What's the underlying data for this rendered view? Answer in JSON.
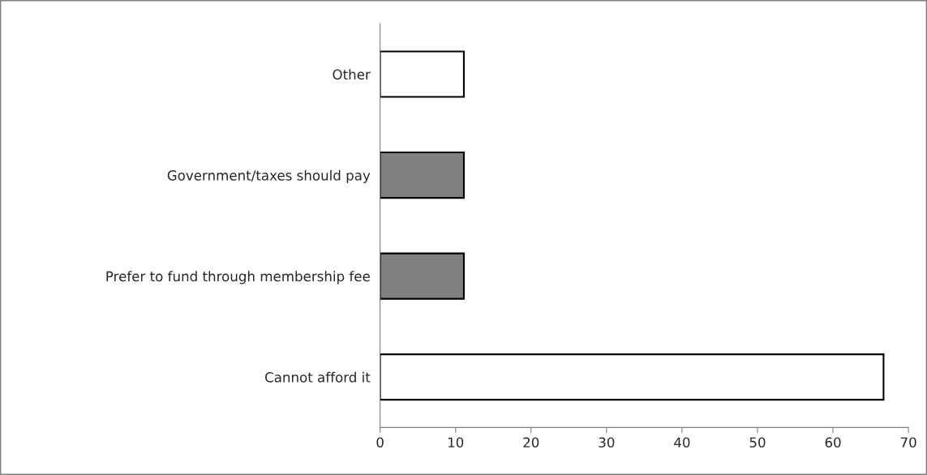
{
  "chart_data": {
    "type": "bar",
    "orientation": "horizontal",
    "categories": [
      "Other",
      "Government/taxes should pay",
      "Prefer to fund through membership fee",
      "Cannot afford it"
    ],
    "values": [
      11.1,
      11.1,
      11.1,
      66.7
    ],
    "colors": [
      "#ffffff",
      "#808080",
      "#808080",
      "#ffffff"
    ],
    "xlim": [
      0,
      70
    ],
    "xticks": [
      0,
      10,
      20,
      30,
      40,
      50,
      60,
      70
    ],
    "grid": false,
    "legend": false
  }
}
